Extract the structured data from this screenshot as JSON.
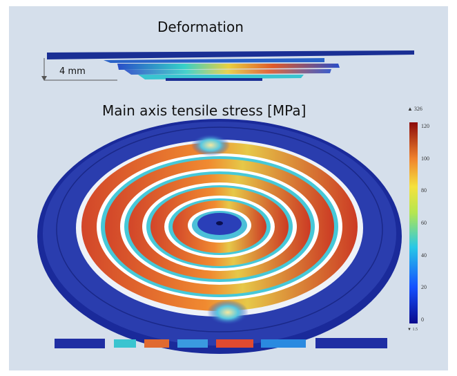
{
  "deformation_title": "Deformation",
  "stress_title": "Main axis tensile stress [MPa]",
  "dimension_label": "4 mm",
  "colorbar": {
    "max_marker": "▲ 326",
    "ticks": [
      "120",
      "100",
      "80",
      "60",
      "40",
      "20",
      "0"
    ],
    "min_marker": "▼ 1.5"
  },
  "colors": {
    "background": "#d5dfeb",
    "disk": "#1f2ea3",
    "stress_high": "#c81e1e",
    "stress_mid": "#f0c83c",
    "stress_low": "#3cc8d2"
  }
}
